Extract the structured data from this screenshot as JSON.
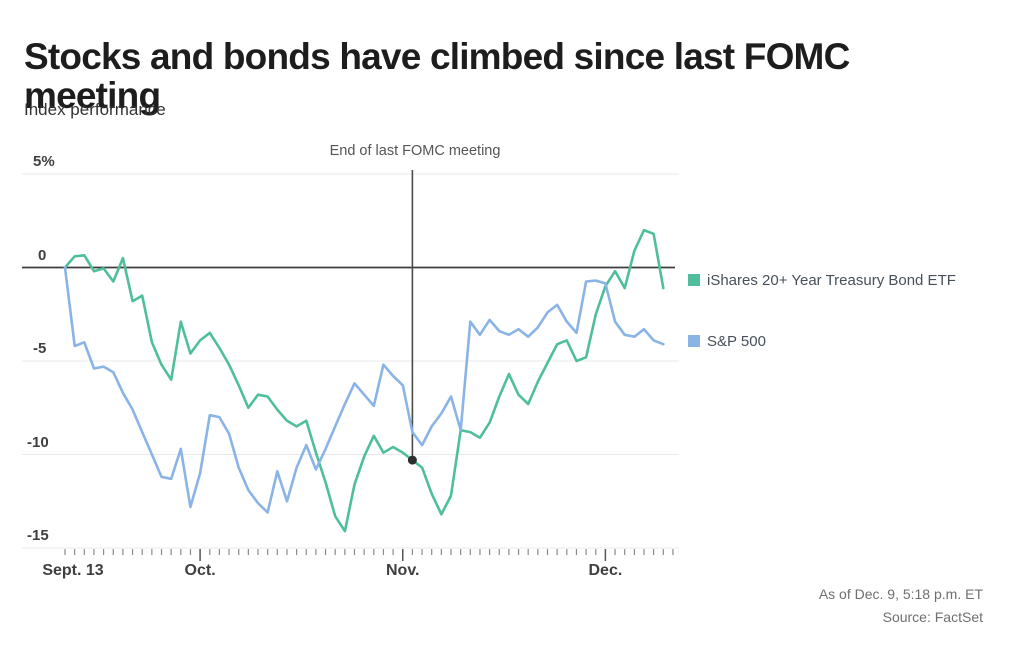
{
  "header": {
    "title": "Stocks and bonds have climbed since last FOMC meeting",
    "subtitle": "Index performance"
  },
  "annotation": {
    "label": "End of last FOMC meeting"
  },
  "footer": {
    "as_of": "As of Dec. 9, 5:18 p.m. ET",
    "source": "Source: FactSet"
  },
  "colors": {
    "bond_line": "#4fbf9b",
    "sp500_line": "#8ab3e6",
    "zero_line": "#3d3d3d",
    "grid_line": "#e9e9e9",
    "annotation_line": "#4a4a4a",
    "annotation_dot": "#2e2e2e",
    "minor_tick": "#8a8a8a",
    "major_tick": "#555555"
  },
  "chart_data": {
    "type": "line",
    "title": "Stocks and bonds have climbed since last FOMC meeting",
    "subtitle": "Index performance",
    "unit": "percent change",
    "x_range_note": "daily from Sept. 13 through Dec. 9",
    "ylim": [
      -15.5,
      5.5
    ],
    "grid": "horizontal",
    "legend_position": "right",
    "y_ticks": [
      {
        "label": "5%",
        "value": 5
      },
      {
        "label": "0",
        "value": 0
      },
      {
        "label": "-5",
        "value": -5
      },
      {
        "label": "-10",
        "value": -10
      },
      {
        "label": "-15",
        "value": -15
      }
    ],
    "x_ticks": [
      {
        "label": "Sept. 13",
        "index": 0
      },
      {
        "label": "Oct.",
        "index": 14
      },
      {
        "label": "Nov.",
        "index": 35
      },
      {
        "label": "Dec.",
        "index": 56
      }
    ],
    "annotations": [
      {
        "label": "End of last FOMC meeting",
        "x_index": 36,
        "marker_value": -10.3
      }
    ],
    "series": [
      {
        "name": "iShares 20+ Year Treasury Bond ETF",
        "color": "#4fbf9b",
        "values": [
          0,
          0.6,
          0.65,
          -0.2,
          -0.05,
          -0.75,
          0.5,
          -1.8,
          -1.5,
          -4.0,
          -5.2,
          -6.0,
          -2.9,
          -4.6,
          -3.9,
          -3.5,
          -4.3,
          -5.2,
          -6.3,
          -7.5,
          -6.8,
          -6.9,
          -7.6,
          -8.2,
          -8.5,
          -8.2,
          -9.9,
          -11.5,
          -13.3,
          -14.1,
          -11.6,
          -10.1,
          -9.0,
          -9.9,
          -9.6,
          -9.9,
          -10.3,
          -10.7,
          -12.1,
          -13.2,
          -12.2,
          -8.7,
          -8.8,
          -9.1,
          -8.3,
          -6.9,
          -5.7,
          -6.8,
          -7.3,
          -6.1,
          -5.1,
          -4.1,
          -3.9,
          -5.0,
          -4.8,
          -2.5,
          -1.0,
          -0.2,
          -1.1,
          0.9,
          2.0,
          1.8,
          -1.1
        ]
      },
      {
        "name": "S&P 500",
        "color": "#8ab3e6",
        "values": [
          0,
          -4.2,
          -4.0,
          -5.4,
          -5.3,
          -5.6,
          -6.7,
          -7.6,
          -8.8,
          -10.0,
          -11.2,
          -11.3,
          -9.7,
          -12.8,
          -11.0,
          -7.9,
          -8.0,
          -8.9,
          -10.7,
          -11.9,
          -12.6,
          -13.1,
          -10.9,
          -12.5,
          -10.7,
          -9.5,
          -10.8,
          -9.7,
          -8.5,
          -7.3,
          -6.2,
          -6.8,
          -7.4,
          -5.2,
          -5.8,
          -6.3,
          -8.8,
          -9.5,
          -8.5,
          -7.8,
          -6.9,
          -8.7,
          -2.9,
          -3.6,
          -2.8,
          -3.4,
          -3.6,
          -3.3,
          -3.7,
          -3.2,
          -2.4,
          -2.0,
          -2.9,
          -3.5,
          -0.75,
          -0.7,
          -0.85,
          -2.9,
          -3.6,
          -3.7,
          -3.3,
          -3.9,
          -4.1
        ]
      }
    ]
  }
}
